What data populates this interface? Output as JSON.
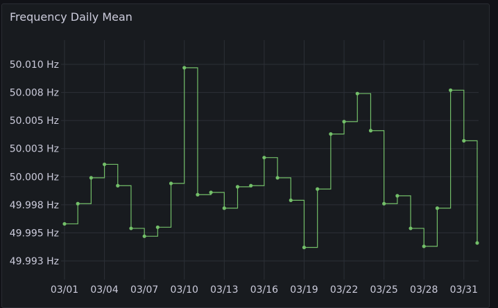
{
  "panel": {
    "title": "Frequency Daily Mean"
  },
  "chart_data": {
    "type": "line",
    "interpolation": "step-after",
    "title": "Frequency Daily Mean",
    "xlabel": "",
    "ylabel": "",
    "x_tick_labels": [
      "03/01",
      "03/04",
      "03/07",
      "03/10",
      "03/13",
      "03/16",
      "03/19",
      "03/22",
      "03/25",
      "03/28",
      "03/31"
    ],
    "y_tick_labels": [
      "50.010 Hz",
      "50.008 Hz",
      "50.005 Hz",
      "50.003 Hz",
      "50.000 Hz",
      "49.998 Hz",
      "49.995 Hz",
      "49.993 Hz"
    ],
    "y_tick_values": [
      50.01,
      50.0075,
      50.005,
      50.0025,
      50.0,
      49.9975,
      49.995,
      49.9925
    ],
    "ylim": [
      49.991,
      50.011
    ],
    "grid": true,
    "legend": "none",
    "color": "#73bf69",
    "series": [
      {
        "dates": [
          "03/01",
          "03/02",
          "03/03",
          "03/04",
          "03/05",
          "03/06",
          "03/07",
          "03/08",
          "03/09",
          "03/10",
          "03/11",
          "03/12",
          "03/13",
          "03/14",
          "03/15",
          "03/16",
          "03/17",
          "03/18",
          "03/19",
          "03/20",
          "03/21",
          "03/22",
          "03/23",
          "03/24",
          "03/25",
          "03/26",
          "03/27",
          "03/28",
          "03/29",
          "03/30",
          "03/31",
          "04/01"
        ],
        "values": [
          49.9958,
          49.9976,
          49.9999,
          50.0011,
          49.9992,
          49.9954,
          49.9947,
          49.9955,
          49.9994,
          50.0097,
          49.9984,
          49.9986,
          49.9972,
          49.9991,
          49.9992,
          50.0017,
          49.9999,
          49.9979,
          49.9937,
          49.9989,
          50.0038,
          50.0049,
          50.0074,
          50.0041,
          49.9976,
          49.9983,
          49.9954,
          49.9938,
          49.9972,
          50.0077,
          50.0032,
          49.9941
        ]
      }
    ]
  }
}
